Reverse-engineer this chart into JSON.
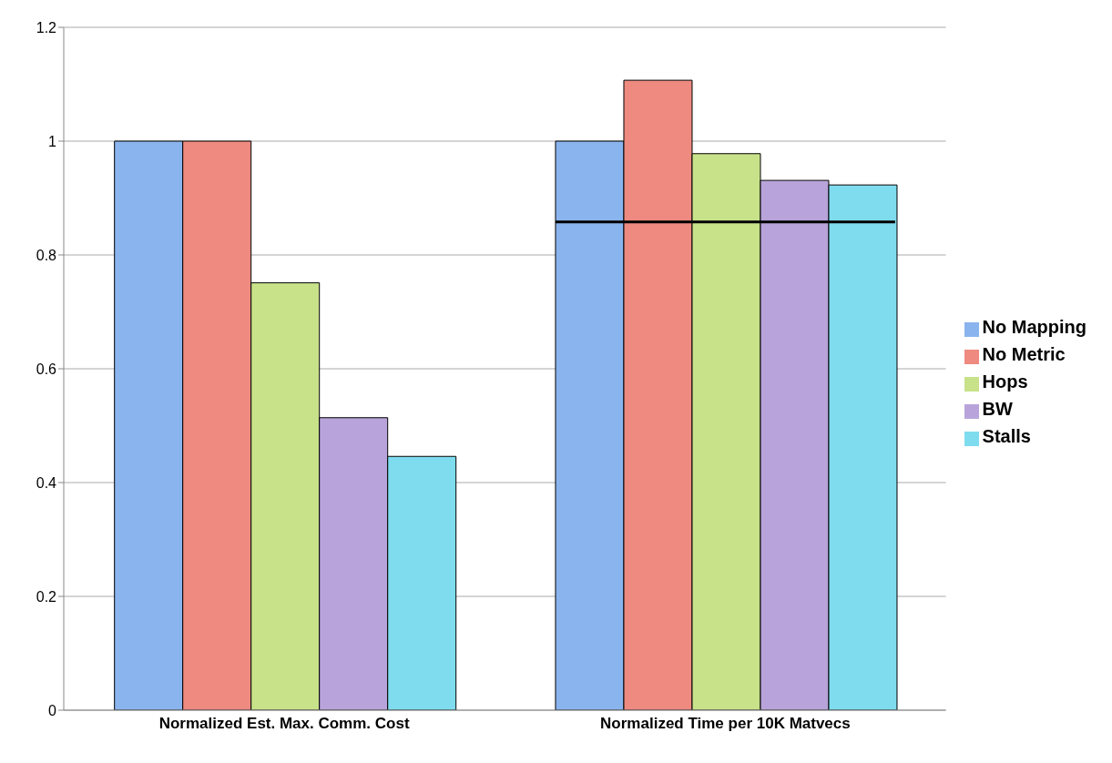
{
  "chart_data": {
    "type": "bar",
    "categories": [
      "Normalized Est. Max. Comm. Cost",
      "Normalized Time per 10K Matvecs"
    ],
    "series": [
      {
        "name": "No Mapping",
        "color": "#8ab4ee",
        "values": [
          1,
          1
        ]
      },
      {
        "name": "No Metric",
        "color": "#ee8a80",
        "values": [
          1,
          1.107
        ]
      },
      {
        "name": "Hops",
        "color": "#c8e28a",
        "values": [
          0.751,
          0.978
        ]
      },
      {
        "name": "BW",
        "color": "#b8a4da",
        "values": [
          0.514,
          0.931
        ]
      },
      {
        "name": "Stalls",
        "color": "#7edcee",
        "values": [
          0.446,
          0.923
        ]
      }
    ],
    "ylim": [
      0,
      1.2
    ],
    "yticks": [
      0,
      0.2,
      0.4,
      0.6,
      0.8,
      1,
      1.2
    ],
    "grid": "y",
    "legend": "right",
    "ref_lines": [
      {
        "axis": "y",
        "value": 0.858,
        "color": "#000000"
      }
    ]
  }
}
